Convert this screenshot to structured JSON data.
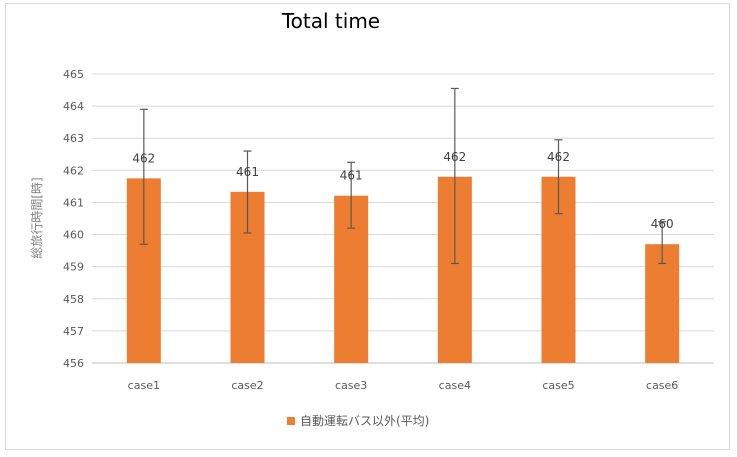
{
  "chart_data": {
    "type": "bar",
    "title": "Total time",
    "ylabel": "総旅行時間[時]",
    "xlabel": "",
    "ylim": [
      456,
      465
    ],
    "yticks": [
      456,
      457,
      458,
      459,
      460,
      461,
      462,
      463,
      464,
      465
    ],
    "categories": [
      "case1",
      "case2",
      "case3",
      "case4",
      "case5",
      "case6"
    ],
    "series": [
      {
        "name": "自動運転バス以外(平均)",
        "values": [
          461.75,
          461.33,
          461.21,
          461.8,
          461.8,
          459.7
        ],
        "error_low": [
          459.7,
          460.05,
          460.2,
          459.1,
          460.65,
          459.1
        ],
        "error_high": [
          463.9,
          462.6,
          462.25,
          464.55,
          462.95,
          460.4
        ],
        "data_labels": [
          "462",
          "461",
          "461",
          "462",
          "462",
          "460"
        ],
        "color": "#ed7d31"
      }
    ],
    "grid": true,
    "legend": "bottom"
  }
}
